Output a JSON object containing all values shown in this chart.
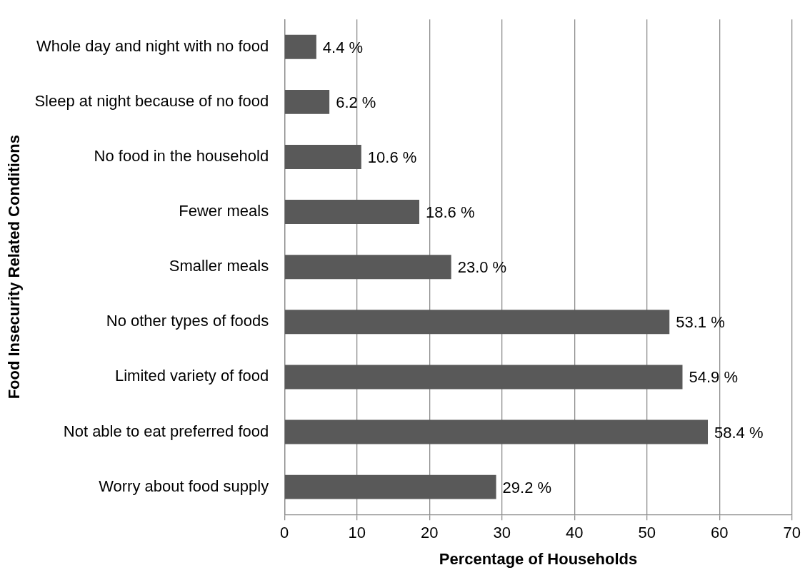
{
  "chart_data": {
    "type": "bar",
    "orientation": "horizontal",
    "categories": [
      "Whole day and night with no food",
      "Sleep at night because of no food",
      "No food in the household",
      "Fewer meals",
      "Smaller meals",
      "No other types of foods",
      "Limited variety of food",
      "Not able to eat preferred food",
      "Worry about food supply"
    ],
    "values": [
      4.4,
      6.2,
      10.6,
      18.6,
      23.0,
      53.1,
      54.9,
      58.4,
      29.2
    ],
    "value_labels": [
      "4.4 %",
      "6.2 %",
      "10.6 %",
      "18.6 %",
      "23.0 %",
      "53.1 %",
      "54.9 %",
      "58.4 %",
      "29.2 %"
    ],
    "color": "#595959",
    "xlim": [
      0,
      70
    ],
    "xticks": [
      0,
      10,
      20,
      30,
      40,
      50,
      60,
      70
    ],
    "xlabel": "Percentage of Households",
    "ylabel": "Food Insecurity Related Conditions",
    "grid": "x",
    "legend": false
  }
}
